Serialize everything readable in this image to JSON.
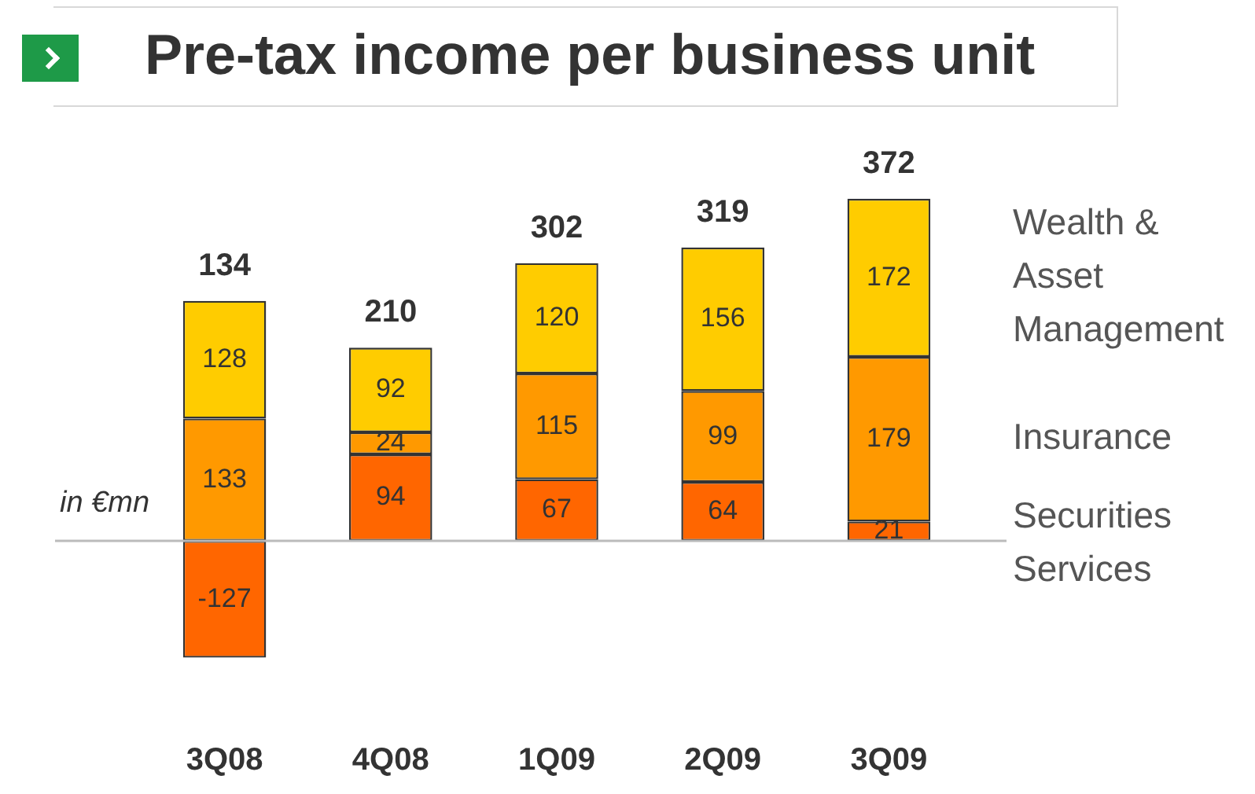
{
  "chart_data": {
    "type": "bar",
    "title": "Pre-tax income per business unit",
    "categories": [
      "3Q08",
      "4Q08",
      "1Q09",
      "2Q09",
      "3Q09"
    ],
    "stacked": true,
    "data_labels": true,
    "legend": "right",
    "annotations": [
      "in €mn"
    ],
    "totals": [
      "134",
      "210",
      "302",
      "319",
      "372"
    ],
    "series": [
      {
        "name": "Securities Services",
        "color": "#ff6600",
        "values": [
          -127,
          94,
          67,
          64,
          21
        ]
      },
      {
        "name": "Insurance",
        "color": "#ff9900",
        "values": [
          133,
          24,
          115,
          99,
          179
        ]
      },
      {
        "name": "Wealth & Asset Management",
        "color": "#ffcc00",
        "values": [
          128,
          92,
          120,
          156,
          172
        ]
      }
    ]
  }
}
